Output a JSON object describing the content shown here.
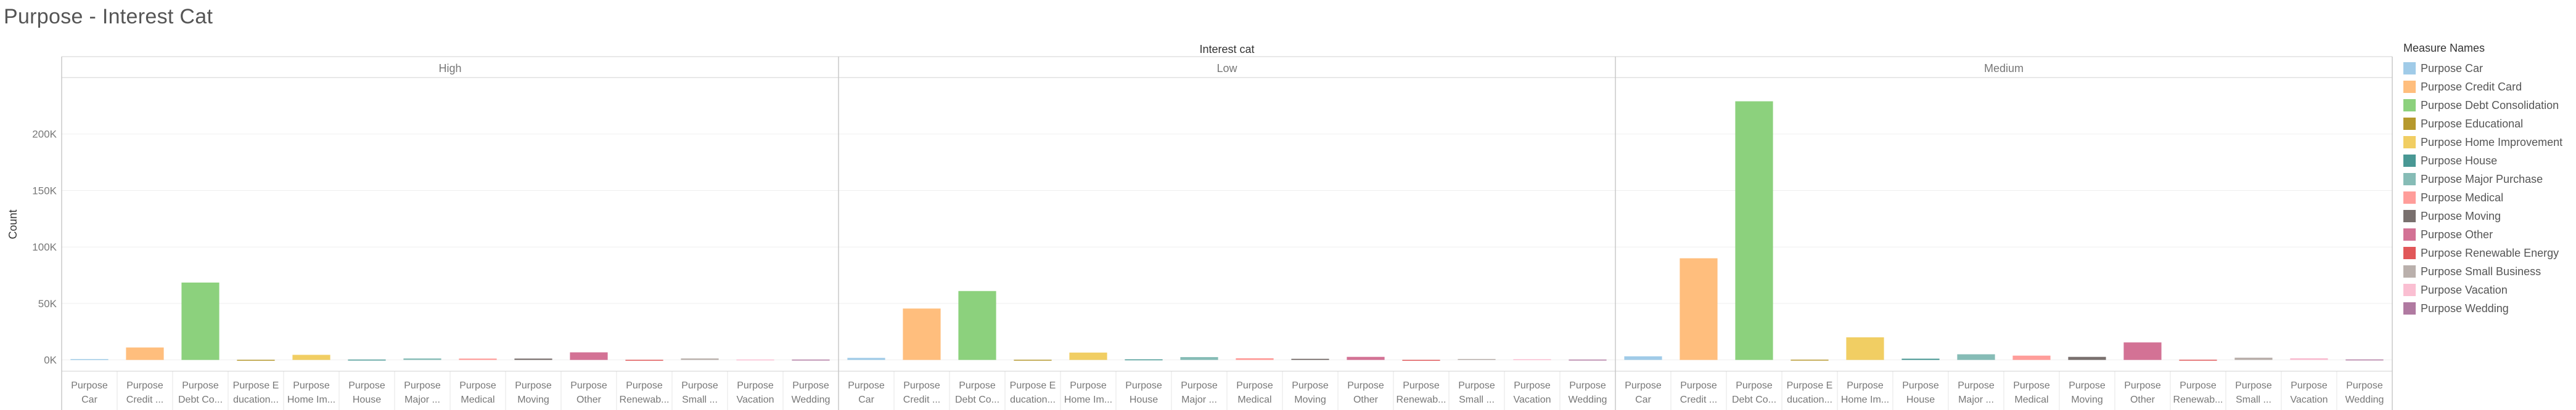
{
  "title": "Purpose - Interest Cat",
  "chart_data": {
    "type": "bar",
    "title": "Purpose - Interest Cat",
    "column_header": "Interest cat",
    "ylabel": "Count",
    "ylim": [
      -10000,
      250000
    ],
    "yticks": [
      0,
      50000,
      100000,
      150000,
      200000
    ],
    "ytick_labels": [
      "0K",
      "50K",
      "100K",
      "150K",
      "200K"
    ],
    "panels": [
      "High",
      "Low",
      "Medium"
    ],
    "categories": [
      {
        "line1": "Purpose",
        "line2": "Car"
      },
      {
        "line1": "Purpose",
        "line2": "Credit ..."
      },
      {
        "line1": "Purpose",
        "line2": "Debt Co..."
      },
      {
        "line1": "Purpose E",
        "line2": "ducation..."
      },
      {
        "line1": "Purpose",
        "line2": "Home Im..."
      },
      {
        "line1": "Purpose",
        "line2": "House"
      },
      {
        "line1": "Purpose",
        "line2": "Major ..."
      },
      {
        "line1": "Purpose",
        "line2": "Medical"
      },
      {
        "line1": "Purpose",
        "line2": "Moving"
      },
      {
        "line1": "Purpose",
        "line2": "Other"
      },
      {
        "line1": "Purpose",
        "line2": "Renewab..."
      },
      {
        "line1": "Purpose",
        "line2": "Small ..."
      },
      {
        "line1": "Purpose",
        "line2": "Vacation"
      },
      {
        "line1": "Purpose",
        "line2": "Wedding"
      }
    ],
    "series": [
      {
        "panel": "High",
        "values": [
          700,
          11000,
          68500,
          100,
          4500,
          300,
          1300,
          1200,
          1200,
          6700,
          100,
          1300,
          400,
          300
        ]
      },
      {
        "panel": "Low",
        "values": [
          1800,
          45500,
          61000,
          150,
          6500,
          500,
          2500,
          1500,
          1000,
          2700,
          50,
          800,
          600,
          300
        ]
      },
      {
        "panel": "Medium",
        "values": [
          3200,
          90000,
          229000,
          200,
          20000,
          1100,
          5000,
          3800,
          2700,
          15500,
          150,
          2000,
          1500,
          400
        ]
      }
    ],
    "legend": {
      "title": "Measure Names",
      "position": "right",
      "items": [
        {
          "label": "Purpose Car",
          "color": "#a0cbe8"
        },
        {
          "label": "Purpose Credit Card",
          "color": "#ffbe7d"
        },
        {
          "label": "Purpose Debt Consolidation",
          "color": "#8cd17d"
        },
        {
          "label": "Purpose Educational",
          "color": "#b6992d"
        },
        {
          "label": "Purpose Home Improvement",
          "color": "#f1ce63"
        },
        {
          "label": "Purpose House",
          "color": "#499894"
        },
        {
          "label": "Purpose Major Purchase",
          "color": "#86bcb6"
        },
        {
          "label": "Purpose Medical",
          "color": "#ff9d9a"
        },
        {
          "label": "Purpose Moving",
          "color": "#79706e"
        },
        {
          "label": "Purpose Other",
          "color": "#d37295"
        },
        {
          "label": "Purpose Renewable Energy",
          "color": "#e15759"
        },
        {
          "label": "Purpose Small Business",
          "color": "#bab0ac"
        },
        {
          "label": "Purpose Vacation",
          "color": "#fabfd2"
        },
        {
          "label": "Purpose Wedding",
          "color": "#b07aa1"
        }
      ]
    },
    "grid": true
  }
}
